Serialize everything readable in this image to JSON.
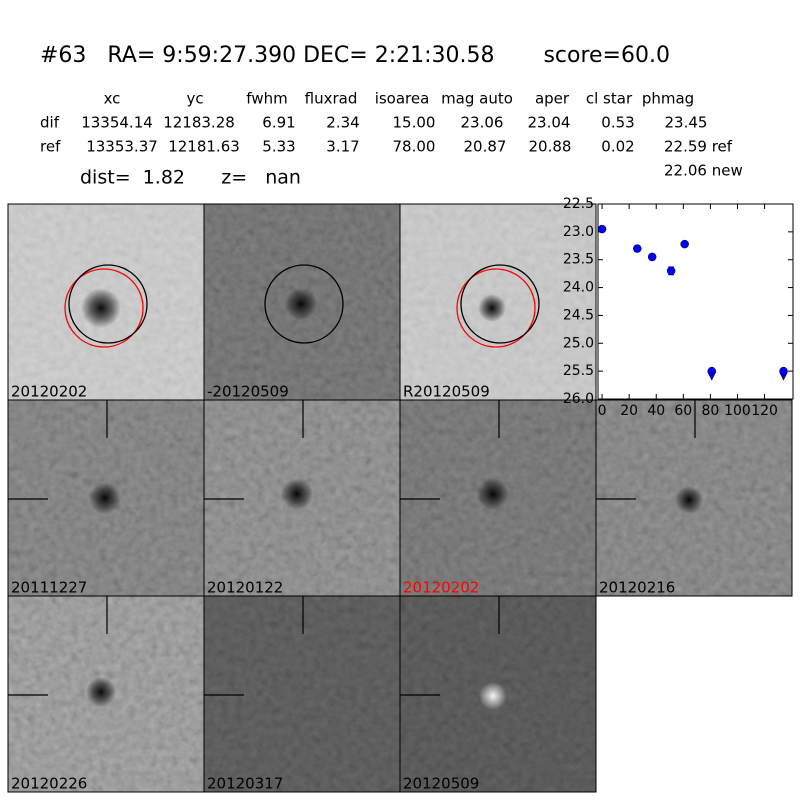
{
  "header": {
    "title": "#63   RA= 9:59:27.390 DEC= 2:21:30.58       score=60.0"
  },
  "table": {
    "columns": [
      "xc",
      "yc",
      "fwhm",
      "fluxrad",
      "isoarea",
      "mag auto",
      "aper",
      "cl star",
      "phmag"
    ],
    "rows": [
      [
        "dif",
        "13354.14",
        "12183.28",
        "6.91",
        "2.34",
        "15.00",
        "23.06",
        "23.04",
        "0.53",
        "23.45"
      ],
      [
        "ref",
        "13353.37",
        "12181.63",
        "5.33",
        "3.17",
        "78.00",
        "20.87",
        "20.88",
        "0.02",
        "22.59 ref"
      ]
    ],
    "extra": "22.06 new"
  },
  "summary": "dist=  1.82      z=   nan",
  "stamps": [
    {
      "label": "20120202"
    },
    {
      "label": "-20120509"
    },
    {
      "label": "R20120509"
    },
    {
      "label": "20111227"
    },
    {
      "label": "20120122"
    },
    {
      "label": "20120202",
      "color": "#ff0000"
    },
    {
      "label": "20120216"
    },
    {
      "label": "20120226"
    },
    {
      "label": "20120317"
    },
    {
      "label": "20120509"
    }
  ],
  "chart_data": {
    "type": "scatter",
    "x": [
      0,
      26,
      37,
      51,
      61,
      81,
      134
    ],
    "values": [
      22.95,
      23.3,
      23.45,
      23.7,
      23.22,
      25.5,
      25.5
    ],
    "errors": [
      0.03,
      0.05,
      0.05,
      0.07,
      0.04,
      null,
      null
    ],
    "upper_limit": [
      false,
      false,
      false,
      false,
      false,
      true,
      true
    ],
    "color": "#0000ff",
    "xlim": [
      -3,
      141
    ],
    "ylim": [
      22.5,
      26.0
    ],
    "y_inverted": true,
    "xticks": [
      0,
      20,
      40,
      60,
      80,
      100,
      120
    ],
    "yticks": [
      22.5,
      {
        "value": 23.0,
        "label": "23.0"
      },
      23.5,
      {
        "value": 24.0,
        "label": "24.0"
      },
      24.5,
      {
        "value": 25.0,
        "label": "25.0"
      },
      25.5,
      {
        "value": 26.0,
        "label": "26.0"
      }
    ]
  }
}
